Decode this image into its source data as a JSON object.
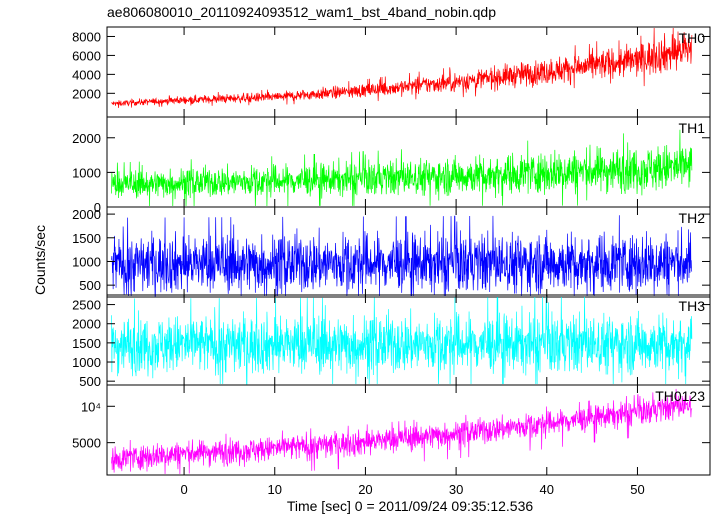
{
  "title": "ae806080010_20110924093512_wam1_bst_4band_nobin.qdp",
  "xlabel": "Time [sec] 0 = 2011/09/24 09:35:12.536",
  "ylabel": "Counts/sec",
  "chart_data": [
    {
      "type": "line",
      "series": [
        {
          "name": "TH0",
          "color": "#ff0000"
        }
      ],
      "xlim": [
        -8.5,
        58
      ],
      "ylim": [
        -500,
        9000
      ],
      "yticks": [
        2000,
        4000,
        6000,
        8000
      ],
      "ytick_labels": [
        "2000",
        "4000",
        "6000",
        "8000"
      ],
      "trend": {
        "t": [
          -8,
          0,
          10,
          20,
          30,
          40,
          50,
          56
        ],
        "y": [
          900,
          1300,
          1600,
          2300,
          3200,
          4300,
          5500,
          6800
        ]
      },
      "noise": 0.16
    },
    {
      "type": "line",
      "series": [
        {
          "name": "TH1",
          "color": "#00ff00"
        }
      ],
      "xlim": [
        -8.5,
        58
      ],
      "ylim": [
        0,
        2600
      ],
      "yticks": [
        0,
        1000,
        2000
      ],
      "ytick_labels": [
        "0",
        "1000",
        "2000"
      ],
      "trend": {
        "t": [
          -8,
          0,
          10,
          20,
          30,
          40,
          50,
          56
        ],
        "y": [
          650,
          700,
          750,
          820,
          900,
          1000,
          1100,
          1150
        ]
      },
      "noise": 0.3
    },
    {
      "type": "line",
      "series": [
        {
          "name": "TH2",
          "color": "#0000ff"
        }
      ],
      "xlim": [
        -8.5,
        58
      ],
      "ylim": [
        250,
        2150
      ],
      "yticks": [
        500,
        1000,
        1500,
        2000
      ],
      "ytick_labels": [
        "500",
        "1000",
        "1500",
        "2000"
      ],
      "trend": {
        "t": [
          -8,
          56
        ],
        "y": [
          950,
          980
        ]
      },
      "noise": 0.32
    },
    {
      "type": "line",
      "series": [
        {
          "name": "TH3",
          "color": "#00ffff"
        }
      ],
      "xlim": [
        -8.5,
        58
      ],
      "ylim": [
        400,
        2750
      ],
      "yticks": [
        500,
        1000,
        1500,
        2000,
        2500
      ],
      "ytick_labels": [
        "500",
        "1000",
        "1500",
        "2000",
        "2500"
      ],
      "trend": {
        "t": [
          -8,
          56
        ],
        "y": [
          1450,
          1480
        ]
      },
      "noise": 0.26
    },
    {
      "type": "line",
      "series": [
        {
          "name": "TH0123",
          "color": "#ff00ff"
        }
      ],
      "xlim": [
        -8.5,
        58
      ],
      "ylim": [
        2700,
        15000
      ],
      "yscale": "log",
      "yticks": [
        5000,
        10000
      ],
      "ytick_labels": [
        "5000",
        "10⁴"
      ],
      "trend": {
        "t": [
          -8,
          0,
          10,
          20,
          30,
          40,
          50,
          56
        ],
        "y": [
          3700,
          4100,
          4500,
          5100,
          6000,
          7200,
          9000,
          10500
        ]
      },
      "noise": 0.12
    }
  ],
  "xaxis": {
    "ticks": [
      0,
      10,
      20,
      30,
      40,
      50
    ],
    "tick_labels": [
      "0",
      "10",
      "20",
      "30",
      "40",
      "50"
    ],
    "data_range": [
      -8,
      56
    ]
  }
}
